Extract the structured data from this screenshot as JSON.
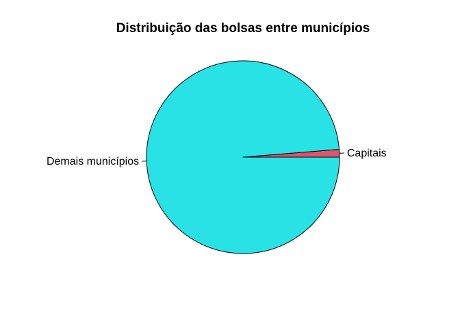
{
  "chart_data": {
    "type": "pie",
    "title": "Distribuição das bolsas entre municípios",
    "slices": [
      {
        "label": "Capitais",
        "value": 0.013,
        "color": "#DF536B"
      },
      {
        "label": "Demais municípios",
        "value": 0.987,
        "color": "#28E2E5"
      }
    ],
    "start_angle_deg": 0,
    "direction": "counterclockwise",
    "legend": "none"
  }
}
